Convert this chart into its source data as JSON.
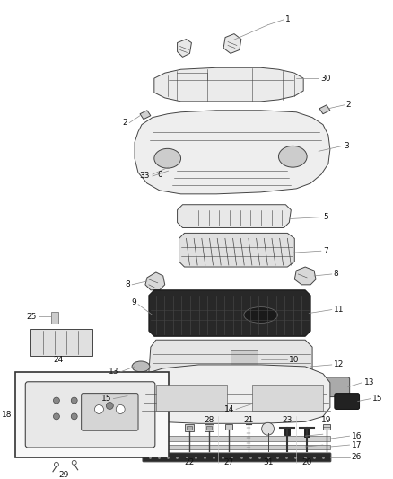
{
  "bg_color": "#ffffff",
  "fig_width": 4.38,
  "fig_height": 5.33,
  "dpi": 100,
  "line_color": "#444444",
  "label_color": "#111111",
  "label_fontsize": 6.5,
  "callout_color": "#888888"
}
